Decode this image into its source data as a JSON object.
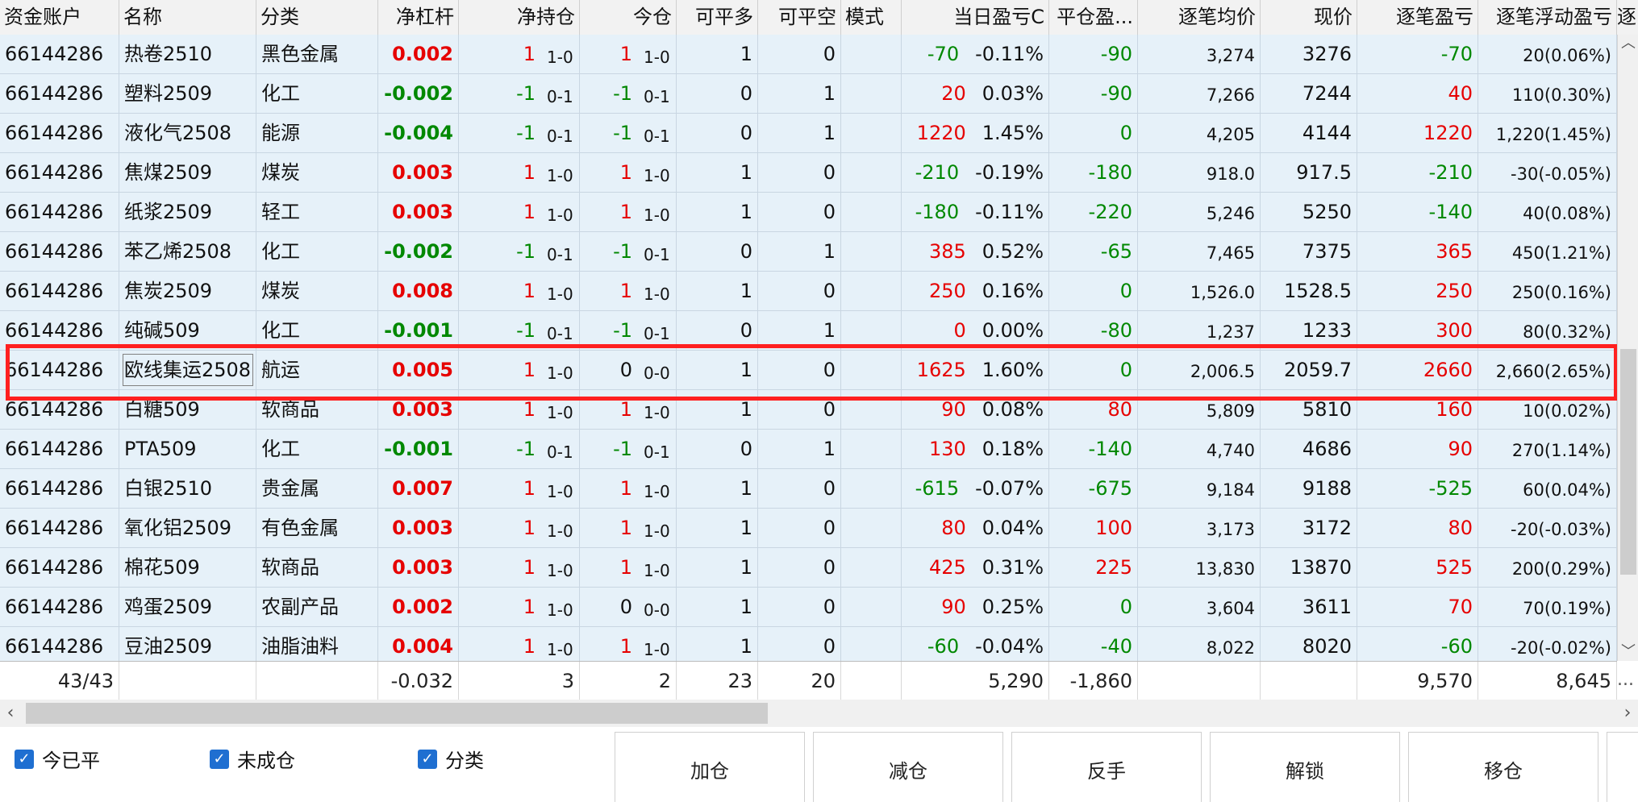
{
  "columns": [
    "资金账户",
    "名称",
    "分类",
    "净杠杆",
    "净持仓",
    "今仓",
    "可平多",
    "可平空",
    "模式",
    "当日盈亏C",
    "平仓盈...",
    "逐笔均价",
    "现价",
    "逐笔盈亏",
    "逐笔浮动盈亏",
    "逐"
  ],
  "rows": [
    {
      "account": "66144286",
      "name": "热卷2510",
      "category": "黑色金属",
      "leverage": "0.002",
      "lev_color": "red",
      "net_pos": "1",
      "net_sub": "1-0",
      "pos_color": "red",
      "today": "1",
      "today_sub": "1-0",
      "today_color": "red",
      "long": "1",
      "short": "0",
      "pnl": "-70",
      "pnl_color": "green",
      "pct": "-0.11%",
      "close": "-90",
      "close_color": "green",
      "avg": "3,274",
      "price": "3276",
      "tpnl": "-70",
      "tpnl_color": "green",
      "float": "20(0.06%)"
    },
    {
      "account": "66144286",
      "name": "塑料2509",
      "category": "化工",
      "leverage": "-0.002",
      "lev_color": "green",
      "net_pos": "-1",
      "net_sub": "0-1",
      "pos_color": "green",
      "today": "-1",
      "today_sub": "0-1",
      "today_color": "green",
      "long": "0",
      "short": "1",
      "pnl": "20",
      "pnl_color": "red",
      "pct": "0.03%",
      "close": "-90",
      "close_color": "green",
      "avg": "7,266",
      "price": "7244",
      "tpnl": "40",
      "tpnl_color": "red",
      "float": "110(0.30%)"
    },
    {
      "account": "66144286",
      "name": "液化气2508",
      "category": "能源",
      "leverage": "-0.004",
      "lev_color": "green",
      "net_pos": "-1",
      "net_sub": "0-1",
      "pos_color": "green",
      "today": "-1",
      "today_sub": "0-1",
      "today_color": "green",
      "long": "0",
      "short": "1",
      "pnl": "1220",
      "pnl_color": "red",
      "pct": "1.45%",
      "close": "0",
      "close_color": "green",
      "avg": "4,205",
      "price": "4144",
      "tpnl": "1220",
      "tpnl_color": "red",
      "float": "1,220(1.45%)"
    },
    {
      "account": "66144286",
      "name": "焦煤2509",
      "category": "煤炭",
      "leverage": "0.003",
      "lev_color": "red",
      "net_pos": "1",
      "net_sub": "1-0",
      "pos_color": "red",
      "today": "1",
      "today_sub": "1-0",
      "today_color": "red",
      "long": "1",
      "short": "0",
      "pnl": "-210",
      "pnl_color": "green",
      "pct": "-0.19%",
      "close": "-180",
      "close_color": "green",
      "avg": "918.0",
      "price": "917.5",
      "tpnl": "-210",
      "tpnl_color": "green",
      "float": "-30(-0.05%)"
    },
    {
      "account": "66144286",
      "name": "纸浆2509",
      "category": "轻工",
      "leverage": "0.003",
      "lev_color": "red",
      "net_pos": "1",
      "net_sub": "1-0",
      "pos_color": "red",
      "today": "1",
      "today_sub": "1-0",
      "today_color": "red",
      "long": "1",
      "short": "0",
      "pnl": "-180",
      "pnl_color": "green",
      "pct": "-0.11%",
      "close": "-220",
      "close_color": "green",
      "avg": "5,246",
      "price": "5250",
      "tpnl": "-140",
      "tpnl_color": "green",
      "float": "40(0.08%)"
    },
    {
      "account": "66144286",
      "name": "苯乙烯2508",
      "category": "化工",
      "leverage": "-0.002",
      "lev_color": "green",
      "net_pos": "-1",
      "net_sub": "0-1",
      "pos_color": "green",
      "today": "-1",
      "today_sub": "0-1",
      "today_color": "green",
      "long": "0",
      "short": "1",
      "pnl": "385",
      "pnl_color": "red",
      "pct": "0.52%",
      "close": "-65",
      "close_color": "green",
      "avg": "7,465",
      "price": "7375",
      "tpnl": "365",
      "tpnl_color": "red",
      "float": "450(1.21%)"
    },
    {
      "account": "66144286",
      "name": "焦炭2509",
      "category": "煤炭",
      "leverage": "0.008",
      "lev_color": "red",
      "net_pos": "1",
      "net_sub": "1-0",
      "pos_color": "red",
      "today": "1",
      "today_sub": "1-0",
      "today_color": "red",
      "long": "1",
      "short": "0",
      "pnl": "250",
      "pnl_color": "red",
      "pct": "0.16%",
      "close": "0",
      "close_color": "green",
      "avg": "1,526.0",
      "price": "1528.5",
      "tpnl": "250",
      "tpnl_color": "red",
      "float": "250(0.16%)"
    },
    {
      "account": "66144286",
      "name": "纯碱509",
      "category": "化工",
      "leverage": "-0.001",
      "lev_color": "green",
      "net_pos": "-1",
      "net_sub": "0-1",
      "pos_color": "green",
      "today": "-1",
      "today_sub": "0-1",
      "today_color": "green",
      "long": "0",
      "short": "1",
      "pnl": "0",
      "pnl_color": "red",
      "pct": "0.00%",
      "close": "-80",
      "close_color": "green",
      "avg": "1,237",
      "price": "1233",
      "tpnl": "300",
      "tpnl_color": "red",
      "float": "80(0.32%)"
    },
    {
      "account": "66144286",
      "name": "欧线集运2508",
      "category": "航运",
      "leverage": "0.005",
      "lev_color": "red",
      "net_pos": "1",
      "net_sub": "1-0",
      "pos_color": "red",
      "today": "0",
      "today_sub": "0-0",
      "today_color": "black",
      "long": "1",
      "short": "0",
      "pnl": "1625",
      "pnl_color": "red",
      "pct": "1.60%",
      "close": "0",
      "close_color": "green",
      "avg": "2,006.5",
      "price": "2059.7",
      "tpnl": "2660",
      "tpnl_color": "red",
      "float": "2,660(2.65%)",
      "selected": true
    },
    {
      "account": "66144286",
      "name": "白糖509",
      "category": "软商品",
      "leverage": "0.003",
      "lev_color": "red",
      "net_pos": "1",
      "net_sub": "1-0",
      "pos_color": "red",
      "today": "1",
      "today_sub": "1-0",
      "today_color": "red",
      "long": "1",
      "short": "0",
      "pnl": "90",
      "pnl_color": "red",
      "pct": "0.08%",
      "close": "80",
      "close_color": "red",
      "avg": "5,809",
      "price": "5810",
      "tpnl": "160",
      "tpnl_color": "red",
      "float": "10(0.02%)"
    },
    {
      "account": "66144286",
      "name": "PTA509",
      "category": "化工",
      "leverage": "-0.001",
      "lev_color": "green",
      "net_pos": "-1",
      "net_sub": "0-1",
      "pos_color": "green",
      "today": "-1",
      "today_sub": "0-1",
      "today_color": "green",
      "long": "0",
      "short": "1",
      "pnl": "130",
      "pnl_color": "red",
      "pct": "0.18%",
      "close": "-140",
      "close_color": "green",
      "avg": "4,740",
      "price": "4686",
      "tpnl": "90",
      "tpnl_color": "red",
      "float": "270(1.14%)"
    },
    {
      "account": "66144286",
      "name": "白银2510",
      "category": "贵金属",
      "leverage": "0.007",
      "lev_color": "red",
      "net_pos": "1",
      "net_sub": "1-0",
      "pos_color": "red",
      "today": "1",
      "today_sub": "1-0",
      "today_color": "red",
      "long": "1",
      "short": "0",
      "pnl": "-615",
      "pnl_color": "green",
      "pct": "-0.07%",
      "close": "-675",
      "close_color": "green",
      "avg": "9,184",
      "price": "9188",
      "tpnl": "-525",
      "tpnl_color": "green",
      "float": "60(0.04%)"
    },
    {
      "account": "66144286",
      "name": "氧化铝2509",
      "category": "有色金属",
      "leverage": "0.003",
      "lev_color": "red",
      "net_pos": "1",
      "net_sub": "1-0",
      "pos_color": "red",
      "today": "1",
      "today_sub": "1-0",
      "today_color": "red",
      "long": "1",
      "short": "0",
      "pnl": "80",
      "pnl_color": "red",
      "pct": "0.04%",
      "close": "100",
      "close_color": "red",
      "avg": "3,173",
      "price": "3172",
      "tpnl": "80",
      "tpnl_color": "red",
      "float": "-20(-0.03%)"
    },
    {
      "account": "66144286",
      "name": "棉花509",
      "category": "软商品",
      "leverage": "0.003",
      "lev_color": "red",
      "net_pos": "1",
      "net_sub": "1-0",
      "pos_color": "red",
      "today": "1",
      "today_sub": "1-0",
      "today_color": "red",
      "long": "1",
      "short": "0",
      "pnl": "425",
      "pnl_color": "red",
      "pct": "0.31%",
      "close": "225",
      "close_color": "red",
      "avg": "13,830",
      "price": "13870",
      "tpnl": "525",
      "tpnl_color": "red",
      "float": "200(0.29%)"
    },
    {
      "account": "66144286",
      "name": "鸡蛋2509",
      "category": "农副产品",
      "leverage": "0.002",
      "lev_color": "red",
      "net_pos": "1",
      "net_sub": "1-0",
      "pos_color": "red",
      "today": "0",
      "today_sub": "0-0",
      "today_color": "black",
      "long": "1",
      "short": "0",
      "pnl": "90",
      "pnl_color": "red",
      "pct": "0.25%",
      "close": "0",
      "close_color": "green",
      "avg": "3,604",
      "price": "3611",
      "tpnl": "70",
      "tpnl_color": "red",
      "float": "70(0.19%)"
    },
    {
      "account": "66144286",
      "name": "豆油2509",
      "category": "油脂油料",
      "leverage": "0.004",
      "lev_color": "red",
      "net_pos": "1",
      "net_sub": "1-0",
      "pos_color": "red",
      "today": "1",
      "today_sub": "1-0",
      "today_color": "red",
      "long": "1",
      "short": "0",
      "pnl": "-60",
      "pnl_color": "green",
      "pct": "-0.04%",
      "close": "-40",
      "close_color": "green",
      "avg": "8,022",
      "price": "8020",
      "tpnl": "-60",
      "tpnl_color": "green",
      "float": "-20(-0.02%)"
    }
  ],
  "summary": {
    "count": "43/43",
    "leverage": "-0.032",
    "net_pos": "3",
    "today": "2",
    "long": "23",
    "short": "20",
    "pnl": "5,290",
    "close": "-1,860",
    "tpnl": "9,570",
    "float": "8,645",
    "more": "..."
  },
  "checkboxes": [
    {
      "label": "今已平",
      "checked": true
    },
    {
      "label": "未成仓",
      "checked": true
    },
    {
      "label": "分类",
      "checked": true
    }
  ],
  "buttons": [
    "加仓",
    "减仓",
    "反手",
    "解锁",
    "移仓"
  ],
  "colors": {
    "row_bg": "#e6f1f9",
    "profit": "#e60000",
    "loss": "#008800",
    "highlight": "#ff2020",
    "checkbox": "#1f6fd1"
  },
  "icons": {
    "scroll_up": "chevron-up-icon",
    "scroll_down": "chevron-down-icon",
    "scroll_left": "chevron-left-icon",
    "scroll_right": "chevron-right-icon",
    "check": "checkmark-icon"
  }
}
